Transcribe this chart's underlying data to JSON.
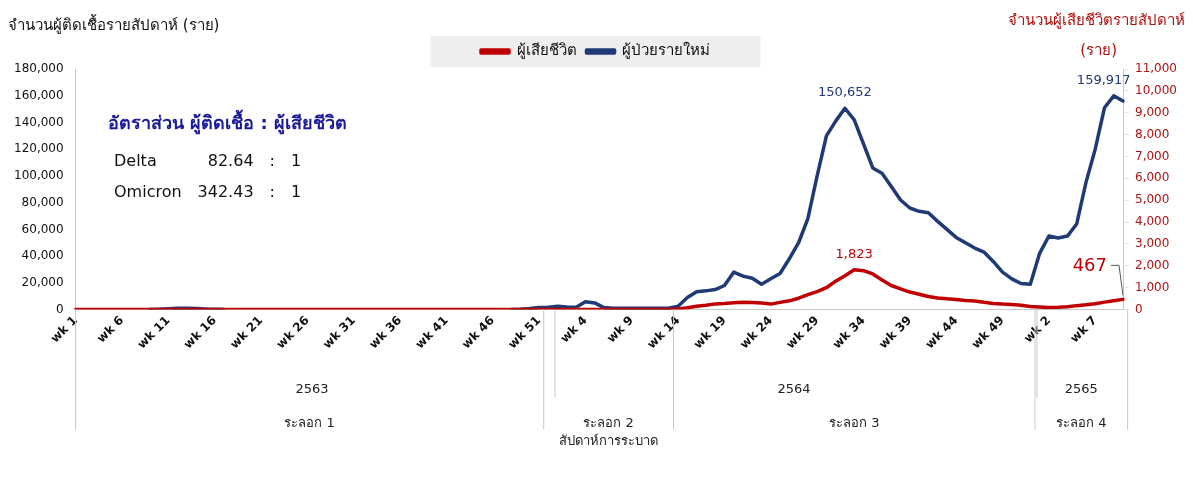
{
  "chart_data": {
    "type": "line",
    "ylabel": "จำนวนผู้ติดเชื้อรายสัปดาห์ (ราย)",
    "y2label": "จำนวนผู้เสียชีวิตรายสัปดาห์ (ราย)",
    "categories": [
      "wk 1",
      null,
      null,
      null,
      null,
      "wk 6",
      null,
      null,
      null,
      null,
      "wk 11",
      null,
      null,
      null,
      null,
      "wk 16",
      null,
      null,
      null,
      null,
      "wk 21",
      null,
      null,
      null,
      null,
      "wk 26",
      null,
      null,
      null,
      null,
      "wk 31",
      null,
      null,
      null,
      null,
      "wk 36",
      null,
      null,
      null,
      null,
      "wk 41",
      null,
      null,
      null,
      null,
      "wk 46",
      null,
      null,
      null,
      null,
      "wk 51",
      null,
      null,
      null,
      null,
      "wk 4",
      null,
      null,
      null,
      null,
      "wk 9",
      null,
      null,
      null,
      null,
      "wk 14",
      null,
      null,
      null,
      null,
      "wk 19",
      null,
      null,
      null,
      null,
      "wk 24",
      null,
      null,
      null,
      null,
      "wk 29",
      null,
      null,
      null,
      null,
      "wk 34",
      null,
      null,
      null,
      null,
      "wk 39",
      null,
      null,
      null,
      null,
      "wk 44",
      null,
      null,
      null,
      null,
      "wk 49",
      null,
      null,
      null,
      null,
      "wk 2",
      null,
      null,
      null,
      null,
      "wk 7",
      null,
      null,
      null
    ],
    "series": [
      {
        "name": "ผู้ป่วยรายใหม่",
        "color": "#1f3a75",
        "values": [
          null,
          null,
          null,
          null,
          null,
          null,
          null,
          null,
          0,
          300,
          600,
          900,
          1000,
          800,
          400,
          200,
          0,
          null,
          null,
          null,
          null,
          null,
          null,
          null,
          null,
          null,
          null,
          null,
          null,
          null,
          null,
          null,
          null,
          null,
          null,
          null,
          null,
          null,
          null,
          null,
          null,
          null,
          null,
          null,
          null,
          null,
          null,
          0,
          300,
          800,
          1500,
          1800,
          2400,
          2000,
          1800,
          5800,
          5000,
          1500,
          1000,
          1000,
          1000,
          1000,
          1000,
          1000,
          1000,
          2500,
          9000,
          13400,
          14000,
          15000,
          18000,
          28000,
          25000,
          23500,
          19000,
          23000,
          27000,
          38000,
          50000,
          68000,
          100000,
          130000,
          141000,
          150652,
          142000,
          124000,
          106000,
          102000,
          92000,
          82000,
          76000,
          73500,
          72500,
          66000,
          60000,
          54000,
          50000,
          46000,
          43000,
          36000,
          28000,
          23000,
          19500,
          19000,
          42000,
          55000,
          53500,
          55000,
          64000,
          95000,
          120000,
          151000,
          159917,
          156000
        ],
        "value_labels": [
          null,
          null,
          null,
          null,
          null,
          null,
          null,
          null,
          null,
          null,
          null,
          null,
          null,
          null,
          null,
          null,
          null,
          null,
          null,
          null,
          null,
          null,
          null,
          null,
          null,
          null,
          null,
          null,
          null,
          null,
          null,
          null,
          null,
          null,
          null,
          null,
          null,
          null,
          null,
          null,
          null,
          null,
          null,
          null,
          null,
          null,
          null,
          null,
          null,
          null,
          null,
          null,
          null,
          null,
          null,
          null,
          null,
          null,
          null,
          null,
          null,
          null,
          null,
          null,
          null,
          null,
          null,
          null,
          null,
          null,
          null,
          null,
          null,
          null,
          null,
          null,
          null,
          null,
          null,
          null,
          null,
          null,
          null,
          "150,652",
          null,
          null,
          null,
          null,
          null,
          null,
          null,
          null,
          null,
          null,
          null,
          null,
          null,
          null,
          null,
          null,
          null,
          null,
          null,
          null,
          null,
          null,
          null,
          null,
          null,
          null,
          null,
          null,
          "159,917",
          null
        ]
      },
      {
        "name": "ผู้เสียชีวิต",
        "color": "#c00000",
        "axis": "y2",
        "values": [
          0,
          0,
          0,
          0,
          0,
          0,
          0,
          0,
          0,
          0,
          0,
          0,
          0,
          0,
          0,
          0,
          0,
          0,
          0,
          0,
          0,
          0,
          0,
          0,
          0,
          0,
          0,
          0,
          0,
          0,
          0,
          0,
          0,
          0,
          0,
          0,
          0,
          0,
          0,
          0,
          0,
          0,
          0,
          0,
          0,
          0,
          0,
          0,
          0,
          0,
          0,
          0,
          0,
          0,
          0,
          0,
          0,
          0,
          0,
          0,
          0,
          0,
          0,
          0,
          0,
          30,
          80,
          150,
          200,
          260,
          280,
          310,
          330,
          320,
          300,
          250,
          330,
          400,
          520,
          680,
          820,
          1000,
          1300,
          1550,
          1823,
          1780,
          1630,
          1350,
          1100,
          950,
          800,
          700,
          600,
          530,
          490,
          460,
          420,
          390,
          330,
          280,
          250,
          230,
          200,
          140,
          120,
          100,
          110,
          130,
          180,
          220,
          270,
          340,
          400,
          467
        ],
        "value_labels": [
          null,
          null,
          null,
          null,
          null,
          null,
          null,
          null,
          null,
          null,
          null,
          null,
          null,
          null,
          null,
          null,
          null,
          null,
          null,
          null,
          null,
          null,
          null,
          null,
          null,
          null,
          null,
          null,
          null,
          null,
          null,
          null,
          null,
          null,
          null,
          null,
          null,
          null,
          null,
          null,
          null,
          null,
          null,
          null,
          null,
          null,
          null,
          null,
          null,
          null,
          null,
          null,
          null,
          null,
          null,
          null,
          null,
          null,
          null,
          null,
          null,
          null,
          null,
          null,
          null,
          null,
          null,
          null,
          null,
          null,
          null,
          null,
          null,
          null,
          null,
          null,
          null,
          null,
          null,
          null,
          null,
          null,
          null,
          null,
          "1,823",
          null,
          null,
          null,
          null,
          null,
          null,
          null,
          null,
          null,
          null,
          null,
          null,
          null,
          null,
          null,
          null,
          null,
          null,
          null,
          null,
          null,
          null,
          null,
          null,
          null,
          null,
          null,
          null,
          "467"
        ]
      }
    ],
    "ylim": [
      0,
      180000
    ],
    "yticks": [
      0,
      {
        "value": 20000,
        "label": "20,000"
      },
      {
        "value": 40000,
        "label": "40,000"
      },
      {
        "value": 60000,
        "label": "60,000"
      },
      {
        "value": 80000,
        "label": "80,000"
      },
      {
        "value": 100000,
        "label": "100,000"
      },
      {
        "value": 120000,
        "label": "120,000"
      },
      {
        "value": 140000,
        "label": "140,000"
      },
      {
        "value": 160000,
        "label": "160,000"
      },
      {
        "value": 180000,
        "label": "180,000"
      }
    ],
    "y2lim": [
      0,
      11000
    ],
    "y2ticks": [
      0,
      {
        "value": 1000,
        "label": "1,000"
      },
      {
        "value": 2000,
        "label": "2,000"
      },
      {
        "value": 3000,
        "label": "3,000"
      },
      {
        "value": 4000,
        "label": "4,000"
      },
      {
        "value": 5000,
        "label": "5,000"
      },
      {
        "value": 6000,
        "label": "6,000"
      },
      {
        "value": 7000,
        "label": "7,000"
      },
      {
        "value": 8000,
        "label": "8,000"
      },
      {
        "value": 9000,
        "label": "9,000"
      },
      {
        "value": 10000,
        "label": "10,000"
      },
      {
        "value": 11000,
        "label": "11,000"
      }
    ],
    "grid": false,
    "legend": "top",
    "marker": "none",
    "line_style": "solid",
    "annotations": [
      "อัตราส่วน ผู้ติดเชื้อ : ผู้เสียชีวิต",
      "Delta",
      "82.64",
      ":",
      "1",
      "Omicron",
      "342.43",
      ":",
      "1",
      "2563",
      "2564",
      "2565",
      "ระลอก 1",
      "ระลอก 2",
      "ระลอก 3",
      "ระลอก 4",
      "สัปดาห์การระบาด"
    ]
  }
}
